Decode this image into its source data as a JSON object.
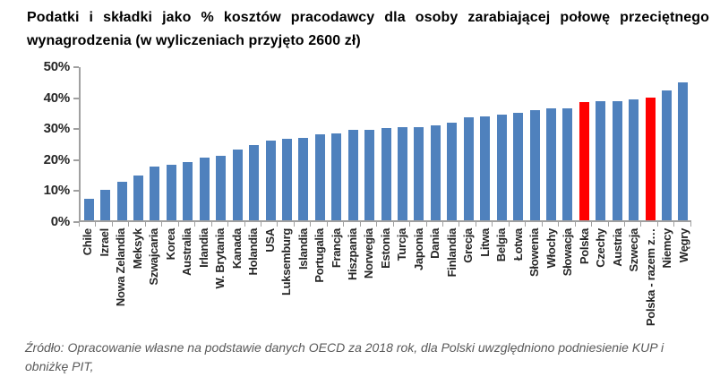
{
  "title": {
    "line1": "Podatki i składki jako % kosztów pracodawcy dla osoby zarabiającej połowę przeciętnego",
    "line2": "wynagrodzenia (w wyliczeniach przyjęto 2600 zł)"
  },
  "source_note": "Źródło: Opracowanie własne na podstawie danych OECD za 2018 rok, dla Polski uwzględniono podniesienie KUP i obniżkę PIT,",
  "chart_data": {
    "type": "bar",
    "title": "Podatki i składki jako % kosztów pracodawcy dla osoby zarabiającej połowę przeciętnego wynagrodzenia (w wyliczeniach przyjęto 2600 zł)",
    "categories": [
      "Chile",
      "Izrael",
      "Nowa Zelandia",
      "Meksyk",
      "Szwajcaria",
      "Korea",
      "Australia",
      "Irlandia",
      "W. Brytania",
      "Kanada",
      "Holandia",
      "USA",
      "Luksemburg",
      "Islandia",
      "Portugalia",
      "Francja",
      "Hiszpania",
      "Norwegia",
      "Estonia",
      "Turcja",
      "Japonia",
      "Dania",
      "Finlandia",
      "Grecja",
      "Litwa",
      "Belgia",
      "Łotwa",
      "Słowenia",
      "Włochy",
      "Słowacja",
      "Polska",
      "Czechy",
      "Austria",
      "Szwecja",
      "Polska - razem z…",
      "Niemcy",
      "Węgry"
    ],
    "values": [
      7,
      10,
      12.5,
      14.5,
      17.5,
      18,
      19,
      20.5,
      21,
      23,
      24.5,
      26,
      26.5,
      27,
      28,
      28.5,
      29.5,
      29.5,
      30,
      30.5,
      30.5,
      31,
      32,
      33.5,
      34,
      34.5,
      35,
      36,
      36.5,
      36.5,
      38.5,
      39,
      39,
      39.5,
      40,
      42.5,
      45
    ],
    "highlighted_indices": [
      30,
      34
    ],
    "bar_color": "#4F81BD",
    "highlight_color": "#FF0000",
    "axis_color": "#a0a0a0",
    "label_color": "#262626",
    "ylim": [
      0,
      50
    ],
    "y_ticks": [
      "0%",
      "10%",
      "20%",
      "30%",
      "40%",
      "50%"
    ],
    "grid": false,
    "legend": false,
    "xlabel": "",
    "ylabel": ""
  }
}
